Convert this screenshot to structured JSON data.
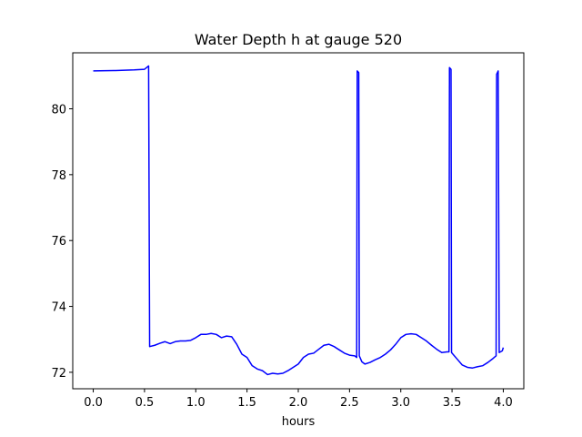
{
  "chart_data": {
    "type": "line",
    "title": "Water Depth h at gauge 520",
    "xlabel": "hours",
    "ylabel": "",
    "xlim": [
      -0.2,
      4.2
    ],
    "ylim": [
      71.5,
      81.7
    ],
    "xticks": [
      0.0,
      0.5,
      1.0,
      1.5,
      2.0,
      2.5,
      3.0,
      3.5,
      4.0
    ],
    "xtick_labels": [
      "0.0",
      "0.5",
      "1.0",
      "1.5",
      "2.0",
      "2.5",
      "3.0",
      "3.5",
      "4.0"
    ],
    "yticks": [
      72,
      74,
      76,
      78,
      80
    ],
    "ytick_labels": [
      "72",
      "74",
      "76",
      "78",
      "80"
    ],
    "grid": false,
    "series": [
      {
        "color": "#0000ff",
        "x": [
          0.0,
          0.2,
          0.4,
          0.5,
          0.54,
          0.55,
          0.6,
          0.65,
          0.7,
          0.75,
          0.8,
          0.85,
          0.9,
          0.95,
          1.0,
          1.05,
          1.1,
          1.15,
          1.2,
          1.25,
          1.3,
          1.35,
          1.4,
          1.45,
          1.5,
          1.55,
          1.6,
          1.65,
          1.7,
          1.75,
          1.8,
          1.85,
          1.9,
          1.95,
          2.0,
          2.05,
          2.1,
          2.15,
          2.2,
          2.25,
          2.3,
          2.35,
          2.4,
          2.45,
          2.5,
          2.55,
          2.57,
          2.575,
          2.59,
          2.595,
          2.62,
          2.65,
          2.7,
          2.75,
          2.8,
          2.85,
          2.9,
          2.95,
          3.0,
          3.05,
          3.1,
          3.15,
          3.2,
          3.25,
          3.3,
          3.35,
          3.4,
          3.45,
          3.47,
          3.475,
          3.49,
          3.495,
          3.55,
          3.6,
          3.65,
          3.7,
          3.75,
          3.8,
          3.85,
          3.9,
          3.93,
          3.935,
          3.95,
          3.96,
          3.99,
          4.0
        ],
        "y": [
          81.15,
          81.16,
          81.18,
          81.2,
          81.3,
          72.78,
          72.82,
          72.88,
          72.93,
          72.87,
          72.93,
          72.95,
          72.95,
          72.97,
          73.05,
          73.15,
          73.15,
          73.18,
          73.15,
          73.05,
          73.1,
          73.08,
          72.85,
          72.55,
          72.45,
          72.2,
          72.1,
          72.05,
          71.93,
          71.97,
          71.95,
          71.97,
          72.05,
          72.15,
          72.25,
          72.45,
          72.55,
          72.58,
          72.7,
          72.82,
          72.85,
          72.78,
          72.68,
          72.58,
          72.52,
          72.5,
          72.45,
          81.15,
          81.1,
          72.5,
          72.32,
          72.25,
          72.3,
          72.38,
          72.45,
          72.55,
          72.68,
          72.85,
          73.05,
          73.15,
          73.17,
          73.15,
          73.05,
          72.95,
          72.82,
          72.7,
          72.6,
          72.62,
          72.62,
          81.25,
          81.2,
          72.6,
          72.4,
          72.22,
          72.15,
          72.13,
          72.17,
          72.2,
          72.3,
          72.42,
          72.5,
          81.05,
          81.15,
          72.6,
          72.65,
          72.75
        ]
      }
    ]
  }
}
